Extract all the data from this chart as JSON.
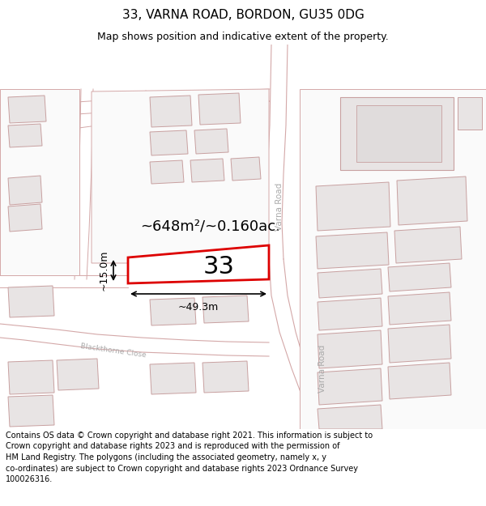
{
  "title": "33, VARNA ROAD, BORDON, GU35 0DG",
  "subtitle": "Map shows position and indicative extent of the property.",
  "footer": "Contains OS data © Crown copyright and database right 2021. This information is subject to Crown copyright and database rights 2023 and is reproduced with the permission of\nHM Land Registry. The polygons (including the associated geometry, namely x, y\nco-ordinates) are subject to Crown copyright and database rights 2023 Ordnance Survey\n100026316.",
  "area_label": "~648m²/~0.160ac.",
  "width_label": "~49.3m",
  "height_label": "~15.0m",
  "property_number": "33",
  "road_varna_upper": "Varna Road",
  "road_varna_lower": "Varna Road",
  "road_blackthorne": "Blackthorne Close",
  "bg": "#ffffff",
  "map_bg": "#ffffff",
  "bld_fill": "#e8e4e4",
  "bld_edge": "#c8a0a0",
  "road_line": "#d4a8a8",
  "plot_edge": "#dd0000",
  "plot_fill": "#ffffff",
  "title_fs": 11,
  "sub_fs": 9,
  "footer_fs": 7.0,
  "area_fs": 13,
  "meas_fs": 9,
  "num_fs": 22,
  "road_fs": 7.5,
  "road_color": "#aaaaaa"
}
